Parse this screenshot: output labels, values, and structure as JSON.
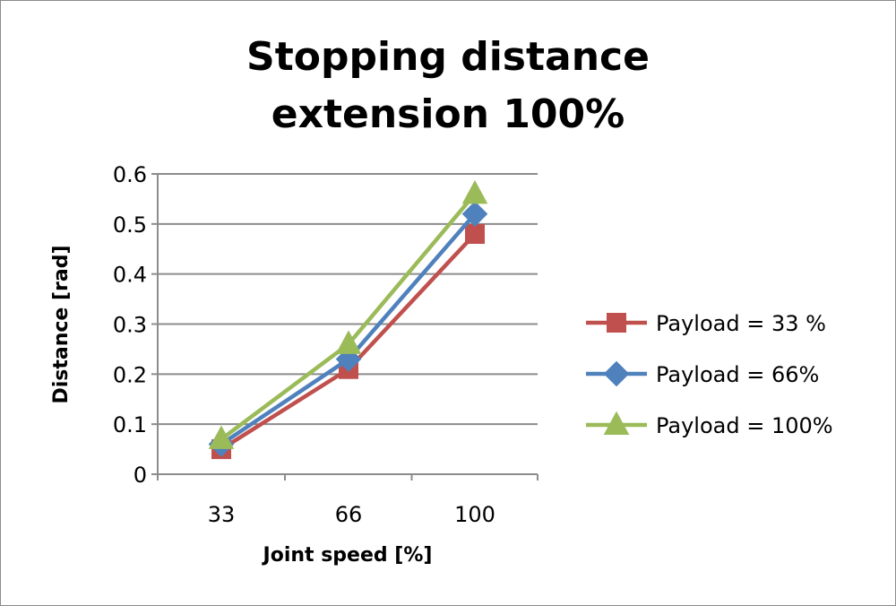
{
  "chart_data": {
    "type": "line",
    "title": [
      "Stopping distance",
      "extension 100%"
    ],
    "xlabel": "Joint speed [%]",
    "ylabel": "Distance [rad]",
    "categories": [
      "33",
      "66",
      "100"
    ],
    "ylim": [
      0,
      0.6
    ],
    "yticks": [
      "0",
      "0.1",
      "0.2",
      "0.3",
      "0.4",
      "0.5",
      "0.6"
    ],
    "grid": true,
    "legend_position": "right",
    "series": [
      {
        "name": "Payload = 33 %",
        "values": [
          0.05,
          0.21,
          0.48
        ],
        "color": "#c0504d",
        "marker": "square"
      },
      {
        "name": "Payload =  66%",
        "values": [
          0.06,
          0.23,
          0.52
        ],
        "color": "#4f81bd",
        "marker": "diamond"
      },
      {
        "name": "Payload =  100%",
        "values": [
          0.07,
          0.26,
          0.56
        ],
        "color": "#9bbb59",
        "marker": "triangle"
      }
    ]
  }
}
